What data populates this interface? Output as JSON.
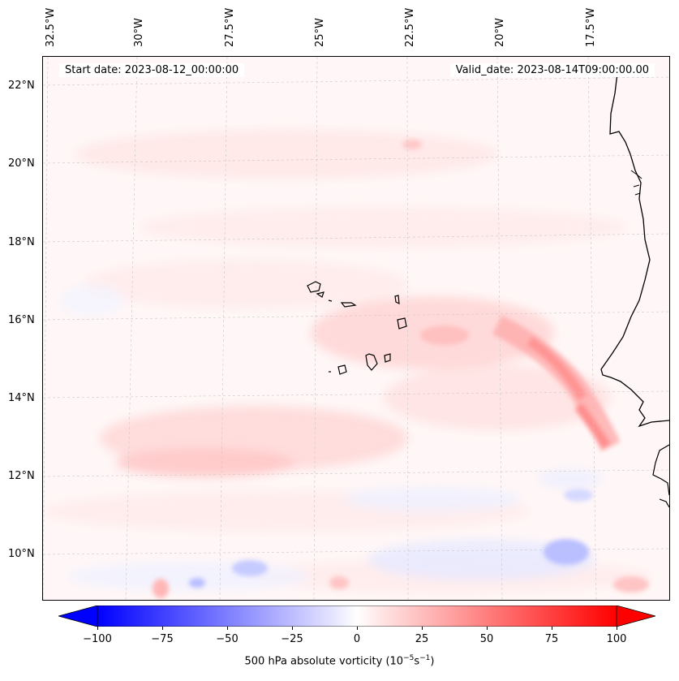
{
  "map": {
    "start_date": "Start date: 2023-08-12_00:00:00",
    "valid_date": "Valid_date: 2023-08-14T09:00:00.00",
    "longitude_labels": [
      "32.5°W",
      "30°W",
      "27.5°W",
      "25°W",
      "22.5°W",
      "20°W",
      "17.5°W"
    ],
    "latitude_labels": [
      "22°N",
      "20°N",
      "18°N",
      "16°N",
      "14°N",
      "12°N",
      "10°N"
    ],
    "colorbar": {
      "label_prefix": "500 hPa absolute vorticity (10",
      "exp1": "−5",
      "unit_mid": "s",
      "exp2": "−1",
      "label_suffix": ")",
      "ticks": [
        "−100",
        "−75",
        "−50",
        "−25",
        "0",
        "25",
        "50",
        "75",
        "100"
      ],
      "min": -100,
      "max": 100,
      "low_color": "#0000ff",
      "high_color": "#ff0000"
    },
    "features": {
      "coastline": "West African coast",
      "islands": "Cape Verde Islands"
    }
  }
}
